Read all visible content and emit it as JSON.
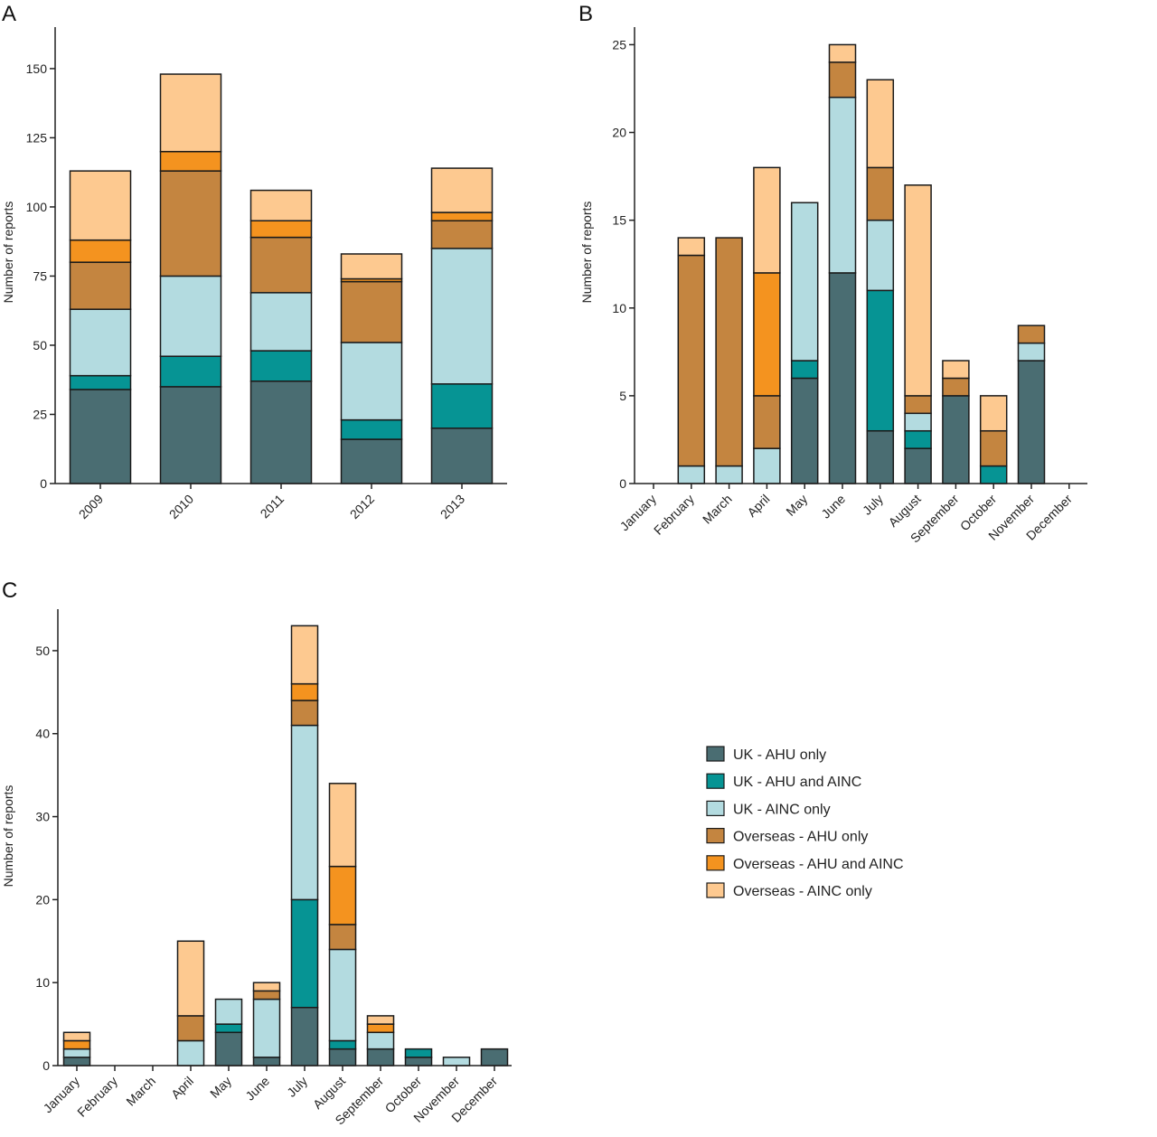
{
  "figure": {
    "series_colors": [
      "#4a6d72",
      "#069494",
      "#b3dbe0",
      "#c48540",
      "#f4931f",
      "#fdc990"
    ],
    "legend": {
      "entries": [
        "UK - AHU only",
        "UK - AHU and AINC",
        "UK - AINC only",
        "Overseas - AHU only",
        "Overseas - AHU and AINC",
        "Overseas - AINC only"
      ]
    }
  },
  "chart_data": [
    {
      "panel": "A",
      "type": "bar",
      "stacked": true,
      "ylabel": "Number of reports",
      "ylim": [
        0,
        165
      ],
      "yticks": [
        0,
        25,
        50,
        75,
        100,
        125,
        150
      ],
      "categories": [
        "2009",
        "2010",
        "2011",
        "2012",
        "2013"
      ],
      "series": [
        {
          "name": "UK - AHU only",
          "values": [
            34,
            35,
            37,
            16,
            20
          ]
        },
        {
          "name": "UK - AHU and AINC",
          "values": [
            5,
            11,
            11,
            7,
            16
          ]
        },
        {
          "name": "UK - AINC only",
          "values": [
            24,
            29,
            21,
            28,
            49
          ]
        },
        {
          "name": "Overseas - AHU only",
          "values": [
            17,
            38,
            20,
            22,
            10
          ]
        },
        {
          "name": "Overseas - AHU and AINC",
          "values": [
            8,
            7,
            6,
            1,
            3
          ]
        },
        {
          "name": "Overseas - AINC only",
          "values": [
            25,
            28,
            11,
            9,
            16
          ]
        }
      ]
    },
    {
      "panel": "B",
      "type": "bar",
      "stacked": true,
      "ylabel": "Number of reports",
      "ylim": [
        0,
        26
      ],
      "yticks": [
        0,
        5,
        10,
        15,
        20,
        25
      ],
      "categories": [
        "January",
        "February",
        "March",
        "April",
        "May",
        "June",
        "July",
        "August",
        "September",
        "October",
        "November",
        "December"
      ],
      "series": [
        {
          "name": "UK - AHU only",
          "values": [
            0,
            0,
            0,
            0,
            6,
            12,
            3,
            2,
            5,
            0,
            7,
            0
          ]
        },
        {
          "name": "UK - AHU and AINC",
          "values": [
            0,
            0,
            0,
            0,
            1,
            0,
            8,
            1,
            0,
            1,
            0,
            0
          ]
        },
        {
          "name": "UK - AINC only",
          "values": [
            0,
            1,
            1,
            2,
            9,
            10,
            4,
            1,
            0,
            0,
            1,
            0
          ]
        },
        {
          "name": "Overseas - AHU only",
          "values": [
            0,
            12,
            13,
            3,
            0,
            2,
            3,
            1,
            1,
            2,
            1,
            0
          ]
        },
        {
          "name": "Overseas - AHU and AINC",
          "values": [
            0,
            0,
            0,
            7,
            0,
            0,
            0,
            0,
            0,
            0,
            0,
            0
          ]
        },
        {
          "name": "Overseas - AINC only",
          "values": [
            0,
            1,
            0,
            6,
            0,
            1,
            5,
            12,
            1,
            2,
            0,
            0
          ]
        }
      ]
    },
    {
      "panel": "C",
      "type": "bar",
      "stacked": true,
      "ylabel": "Number of reports",
      "ylim": [
        0,
        55
      ],
      "yticks": [
        0,
        10,
        20,
        30,
        40,
        50
      ],
      "categories": [
        "January",
        "February",
        "March",
        "April",
        "May",
        "June",
        "July",
        "August",
        "September",
        "October",
        "November",
        "December"
      ],
      "series": [
        {
          "name": "UK - AHU only",
          "values": [
            1,
            0,
            0,
            0,
            4,
            1,
            7,
            2,
            2,
            1,
            0,
            2
          ]
        },
        {
          "name": "UK - AHU and AINC",
          "values": [
            0,
            0,
            0,
            0,
            1,
            0,
            13,
            1,
            0,
            1,
            0,
            0
          ]
        },
        {
          "name": "UK - AINC only",
          "values": [
            1,
            0,
            0,
            3,
            3,
            7,
            21,
            11,
            2,
            0,
            1,
            0
          ]
        },
        {
          "name": "Overseas - AHU only",
          "values": [
            0,
            0,
            0,
            3,
            0,
            1,
            3,
            3,
            0,
            0,
            0,
            0
          ]
        },
        {
          "name": "Overseas - AHU and AINC",
          "values": [
            1,
            0,
            0,
            0,
            0,
            0,
            2,
            7,
            1,
            0,
            0,
            0
          ]
        },
        {
          "name": "Overseas - AINC only",
          "values": [
            1,
            0,
            0,
            9,
            0,
            1,
            7,
            10,
            1,
            0,
            0,
            0
          ]
        }
      ]
    }
  ]
}
